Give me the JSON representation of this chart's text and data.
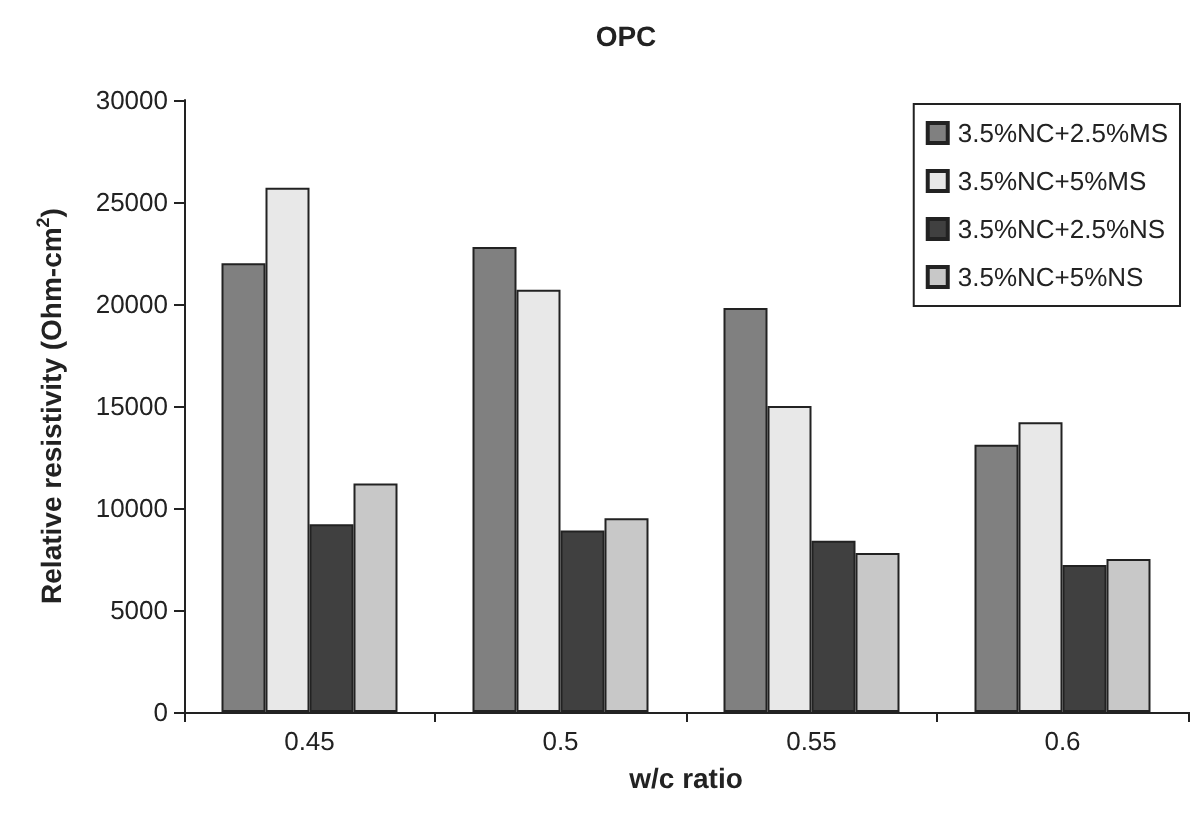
{
  "chart_data": {
    "type": "bar",
    "title": "OPC",
    "xlabel": "w/c ratio",
    "ylabel": "Relative resistivity (Ohm-cm$^{2}$)",
    "categories": [
      "0.45",
      "0.5",
      "0.55",
      "0.6"
    ],
    "series": [
      {
        "name": "3.5%NC+2.5%MS",
        "color": "#808080",
        "values": [
          22000,
          22800,
          19800,
          13100
        ]
      },
      {
        "name": "3.5%NC+5%MS",
        "color": "#e8e8e8",
        "values": [
          25700,
          20700,
          15000,
          14200
        ]
      },
      {
        "name": "3.5%NC+2.5%NS",
        "color": "#404040",
        "values": [
          9200,
          8900,
          8400,
          7200
        ]
      },
      {
        "name": "3.5%NC+5%NS",
        "color": "#c8c8c8",
        "values": [
          11200,
          9500,
          7800,
          7500
        ]
      }
    ],
    "ylim": [
      0,
      30000
    ],
    "yticks": [
      0,
      5000,
      10000,
      15000,
      20000,
      25000,
      30000
    ],
    "grid": false,
    "legend": "top right"
  }
}
